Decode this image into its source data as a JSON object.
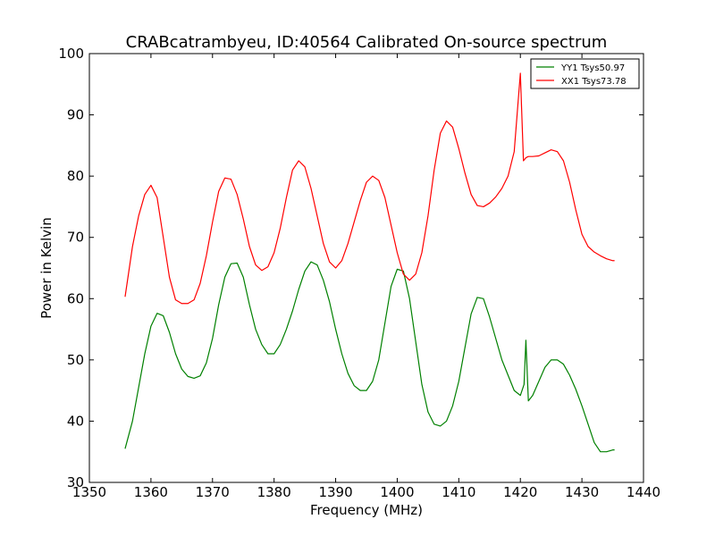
{
  "chart_data": {
    "type": "line",
    "title": "CRABcatrambyeu, ID:40564 Calibrated On-source spectrum",
    "xlabel": "Frequency (MHz)",
    "ylabel": "Power in Kelvin",
    "xlim": [
      1350,
      1440
    ],
    "ylim": [
      30,
      100
    ],
    "xticks": [
      1350,
      1360,
      1370,
      1380,
      1390,
      1400,
      1410,
      1420,
      1430,
      1440
    ],
    "yticks": [
      30,
      40,
      50,
      60,
      70,
      80,
      90,
      100
    ],
    "grid": false,
    "legend_position": "top-right",
    "series": [
      {
        "name": "YY1 Tsys50.97",
        "color": "#008000",
        "x": [
          1355.8,
          1357,
          1358,
          1359,
          1360,
          1361,
          1362,
          1363,
          1364,
          1365,
          1366,
          1367,
          1368,
          1369,
          1370,
          1371,
          1372,
          1373,
          1374,
          1375,
          1376,
          1377,
          1378,
          1379,
          1380,
          1381,
          1382,
          1383,
          1384,
          1385,
          1386,
          1387,
          1388,
          1389,
          1390,
          1391,
          1392,
          1393,
          1394,
          1395,
          1396,
          1397,
          1398,
          1399,
          1400,
          1401,
          1402,
          1403,
          1404,
          1405,
          1406,
          1407,
          1408,
          1409,
          1410,
          1411,
          1412,
          1413,
          1414,
          1415,
          1416,
          1417,
          1418,
          1419,
          1420,
          1420.6,
          1420.9,
          1421.3,
          1422,
          1423,
          1424,
          1425,
          1426,
          1427,
          1428,
          1429,
          1430,
          1431,
          1432,
          1433,
          1434,
          1435,
          1435.3
        ],
        "values": [
          35.5,
          40,
          45.5,
          51,
          55.5,
          57.6,
          57.2,
          54.5,
          51,
          48.5,
          47.3,
          47,
          47.4,
          49.5,
          53.5,
          59,
          63.5,
          65.7,
          65.8,
          63.5,
          59,
          55,
          52.5,
          51,
          51,
          52.5,
          55,
          58,
          61.5,
          64.5,
          66,
          65.5,
          63,
          59.5,
          55,
          51,
          47.8,
          45.8,
          45,
          45,
          46.5,
          50,
          56,
          62,
          64.8,
          64.5,
          60,
          53,
          46,
          41.5,
          39.5,
          39.2,
          40,
          42.5,
          46.5,
          52,
          57.5,
          60.2,
          60,
          57,
          53.5,
          50,
          47.5,
          45,
          44.2,
          46,
          53.2,
          43.3,
          44.2,
          46.5,
          48.8,
          50,
          50,
          49.3,
          47.5,
          45.2,
          42.5,
          39.5,
          36.5,
          35,
          35,
          35.3,
          35.3
        ]
      },
      {
        "name": "XX1 Tsys73.78",
        "color": "#ff0000",
        "x": [
          1355.8,
          1357,
          1358,
          1359,
          1360,
          1361,
          1362,
          1363,
          1364,
          1365,
          1366,
          1367,
          1368,
          1369,
          1370,
          1371,
          1372,
          1373,
          1374,
          1375,
          1376,
          1377,
          1378,
          1379,
          1380,
          1381,
          1382,
          1383,
          1384,
          1385,
          1386,
          1387,
          1388,
          1389,
          1390,
          1391,
          1392,
          1393,
          1394,
          1395,
          1396,
          1397,
          1398,
          1399,
          1400,
          1401,
          1402,
          1403,
          1404,
          1405,
          1406,
          1407,
          1408,
          1409,
          1410,
          1411,
          1412,
          1413,
          1414,
          1415,
          1416,
          1417,
          1418,
          1419,
          1420,
          1420.5,
          1420.9,
          1421.3,
          1422,
          1423,
          1424,
          1425,
          1426,
          1427,
          1428,
          1429,
          1430,
          1431,
          1432,
          1433,
          1434,
          1435,
          1435.3
        ],
        "values": [
          60.3,
          68.5,
          73.5,
          77,
          78.5,
          76.5,
          70,
          63.5,
          59.8,
          59.2,
          59.2,
          59.8,
          62.5,
          67,
          72.5,
          77.5,
          79.7,
          79.5,
          77,
          73,
          68.5,
          65.5,
          64.6,
          65.2,
          67.5,
          71.5,
          76.5,
          81,
          82.5,
          81.5,
          78,
          73.5,
          69,
          66,
          65,
          66.2,
          69,
          72.5,
          76,
          79,
          80,
          79.3,
          76.5,
          72,
          67.5,
          64,
          63,
          64,
          67.5,
          73.5,
          81,
          87,
          89,
          88,
          84.5,
          80.5,
          77,
          75.2,
          75,
          75.6,
          76.6,
          78,
          80,
          84,
          96.8,
          82.5,
          83,
          83.2,
          83.2,
          83.3,
          83.8,
          84.3,
          84,
          82.5,
          79,
          74.5,
          70.5,
          68.5,
          67.6,
          67,
          66.5,
          66.2,
          66.2
        ]
      }
    ]
  }
}
